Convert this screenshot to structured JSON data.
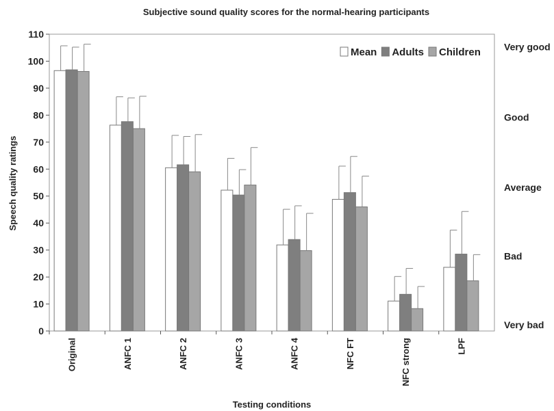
{
  "chart_data": {
    "type": "bar",
    "title": "Subjective sound quality scores for the normal-hearing participants",
    "xlabel": "Testing conditions",
    "ylabel": "Speech quality ratings",
    "ylim": [
      0,
      110
    ],
    "yticks": [
      0,
      10,
      20,
      30,
      40,
      50,
      60,
      70,
      80,
      90,
      100,
      110
    ],
    "grid": false,
    "legend_position": "top-right",
    "categories": [
      "Original",
      "ANFC 1",
      "ANFC 2",
      "ANFC 3",
      "ANFC 4",
      "NFC FT",
      "NFC strong",
      "LPF"
    ],
    "series": [
      {
        "name": "Mean",
        "color": "#ffffff",
        "values": [
          96.5,
          76.3,
          60.5,
          52.2,
          31.9,
          48.8,
          11.1,
          23.6
        ],
        "errors": [
          9.2,
          10.5,
          12.0,
          11.8,
          13.2,
          12.3,
          9.1,
          13.8
        ]
      },
      {
        "name": "Adults",
        "color": "#7f7f7f",
        "values": [
          96.8,
          77.6,
          61.6,
          50.4,
          33.9,
          51.3,
          13.6,
          28.5
        ],
        "errors": [
          8.4,
          8.8,
          10.5,
          9.4,
          12.5,
          13.4,
          9.6,
          15.8
        ]
      },
      {
        "name": "Children",
        "color": "#a6a6a6",
        "values": [
          96.2,
          75.0,
          59.0,
          54.1,
          29.8,
          46.0,
          8.3,
          18.6
        ],
        "errors": [
          10.1,
          12.0,
          13.8,
          13.9,
          13.8,
          11.4,
          8.2,
          9.7
        ]
      }
    ],
    "right_axis_labels": [
      {
        "label": "Very good",
        "value": 104
      },
      {
        "label": "Good",
        "value": 78
      },
      {
        "label": "Average",
        "value": 52
      },
      {
        "label": "Bad",
        "value": 26.5
      },
      {
        "label": "Very bad",
        "value": 1
      }
    ]
  }
}
